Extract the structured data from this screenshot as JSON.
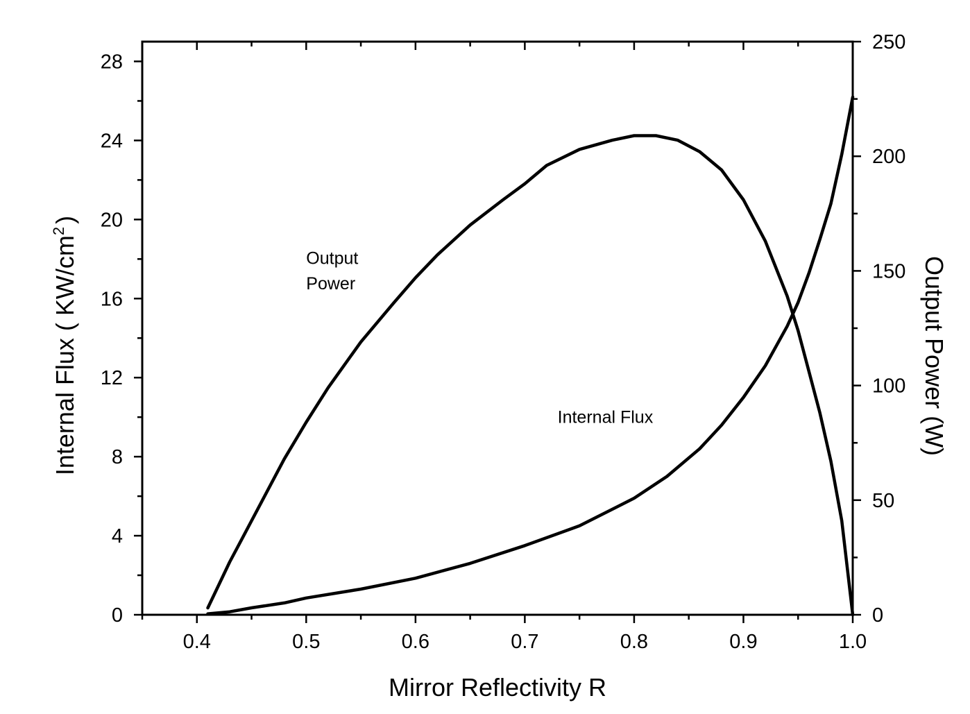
{
  "chart_data": {
    "type": "line",
    "xlabel": "Mirror Reflectivity R",
    "ylabel_left": "Internal Flux ( KW/cm",
    "ylabel_left_sup": "2",
    "ylabel_left_end": ")",
    "ylabel_right": "Output Power (W)",
    "xlim": [
      0.35,
      1.0
    ],
    "ylim_left": [
      0,
      29
    ],
    "ylim_right": [
      0,
      250
    ],
    "x_ticks": [
      {
        "value": 0.4,
        "label": "0.4"
      },
      {
        "value": 0.5,
        "label": "0.5"
      },
      {
        "value": 0.6,
        "label": "0.6"
      },
      {
        "value": 0.7,
        "label": "0.7"
      },
      {
        "value": 0.8,
        "label": "0.8"
      },
      {
        "value": 0.9,
        "label": "0.9"
      },
      {
        "value": 1.0,
        "label": "1.0"
      }
    ],
    "y_left_ticks": [
      {
        "value": 0,
        "label": "0"
      },
      {
        "value": 4,
        "label": "4"
      },
      {
        "value": 8,
        "label": "8"
      },
      {
        "value": 12,
        "label": "12"
      },
      {
        "value": 16,
        "label": "16"
      },
      {
        "value": 20,
        "label": "20"
      },
      {
        "value": 24,
        "label": "24"
      },
      {
        "value": 28,
        "label": "28"
      }
    ],
    "y_right_ticks": [
      {
        "value": 0,
        "label": "0"
      },
      {
        "value": 50,
        "label": "50"
      },
      {
        "value": 100,
        "label": "100"
      },
      {
        "value": 150,
        "label": "150"
      },
      {
        "value": 200,
        "label": "200"
      },
      {
        "value": 250,
        "label": "250"
      }
    ],
    "grid": false,
    "series": [
      {
        "name": "Output Power",
        "axis": "right",
        "x": [
          0.41,
          0.42,
          0.43,
          0.44,
          0.46,
          0.48,
          0.5,
          0.52,
          0.55,
          0.58,
          0.6,
          0.62,
          0.65,
          0.68,
          0.7,
          0.72,
          0.75,
          0.78,
          0.8,
          0.82,
          0.84,
          0.86,
          0.88,
          0.9,
          0.92,
          0.94,
          0.95,
          0.96,
          0.97,
          0.98,
          0.99,
          1.0
        ],
        "values": [
          3,
          13,
          23,
          32,
          50,
          68,
          84,
          99,
          119,
          136,
          147,
          157,
          170,
          181,
          188,
          196,
          203,
          207,
          209,
          209,
          207,
          202,
          194,
          181,
          163,
          139,
          124,
          106,
          88,
          67,
          41,
          0
        ]
      },
      {
        "name": "Internal Flux",
        "axis": "left",
        "x": [
          0.41,
          0.43,
          0.45,
          0.48,
          0.5,
          0.55,
          0.6,
          0.65,
          0.7,
          0.75,
          0.8,
          0.83,
          0.86,
          0.88,
          0.9,
          0.92,
          0.94,
          0.95,
          0.96,
          0.97,
          0.98,
          0.99,
          1.0
        ],
        "values": [
          0.05,
          0.15,
          0.35,
          0.6,
          0.85,
          1.3,
          1.85,
          2.6,
          3.5,
          4.5,
          5.9,
          7.0,
          8.4,
          9.6,
          11.0,
          12.6,
          14.6,
          15.8,
          17.3,
          19.0,
          20.8,
          23.3,
          26.2
        ]
      }
    ],
    "annotations": [
      {
        "text": "Output",
        "x": 0.5,
        "y_right": 153
      },
      {
        "text": "Power",
        "x": 0.5,
        "y_right": 142
      },
      {
        "text": "Internal Flux",
        "x": 0.73,
        "y_left": 9.7
      }
    ]
  }
}
